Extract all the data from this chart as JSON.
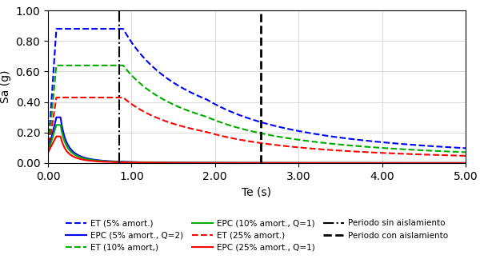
{
  "title": "",
  "xlabel": "Te (s)",
  "ylabel": "Sa (g)",
  "xlim": [
    0,
    5.0
  ],
  "ylim": [
    0,
    1.0
  ],
  "xticks": [
    0.0,
    1.0,
    2.0,
    3.0,
    4.0,
    5.0
  ],
  "yticks": [
    0.0,
    0.2,
    0.4,
    0.6,
    0.8,
    1.0
  ],
  "periodo_sin_aislamiento": 0.85,
  "periodo_con_aislamiento": 2.55,
  "colors": {
    "blue": "#0000FF",
    "green": "#00AA00",
    "red": "#FF0000",
    "black": "#000000"
  },
  "spectra": {
    "ET5": {
      "Ta": 0.1,
      "Tb": 0.9,
      "Tc": 1.9,
      "Sa_max": 0.88,
      "Sa0": 0.07,
      "decay": 1
    },
    "EPC5": {
      "Ta": 0.1,
      "Tb": 0.15,
      "Tc": 0.9,
      "Sa_max": 0.3,
      "Sa0": 0.07,
      "decay": 2
    },
    "ET10": {
      "Ta": 0.1,
      "Tb": 0.9,
      "Tc": 1.9,
      "Sa_max": 0.64,
      "Sa0": 0.07,
      "decay": 1
    },
    "EPC10": {
      "Ta": 0.1,
      "Tb": 0.15,
      "Tc": 0.9,
      "Sa_max": 0.25,
      "Sa0": 0.07,
      "decay": 2
    },
    "ET25": {
      "Ta": 0.1,
      "Tb": 0.9,
      "Tc": 1.9,
      "Sa_max": 0.43,
      "Sa0": 0.07,
      "decay": 1
    },
    "EPC25": {
      "Ta": 0.1,
      "Tb": 0.15,
      "Tc": 0.9,
      "Sa_max": 0.175,
      "Sa0": 0.07,
      "decay": 2
    }
  },
  "legend_items": [
    {
      "label": "ET (5% amort.)",
      "color": "#0000FF",
      "linestyle": "dashed",
      "lw": 1.5
    },
    {
      "label": "EPC (5% amort., Q=2)",
      "color": "#0000FF",
      "linestyle": "solid",
      "lw": 1.5
    },
    {
      "label": "ET (10% amort,)",
      "color": "#00AA00",
      "linestyle": "dashed",
      "lw": 1.5
    },
    {
      "label": "EPC (10% amort., Q=1)",
      "color": "#00AA00",
      "linestyle": "solid",
      "lw": 1.5
    },
    {
      "label": "ET (25% amort.)",
      "color": "#FF0000",
      "linestyle": "dashed",
      "lw": 1.5
    },
    {
      "label": "EPC (25% amort., Q=1)",
      "color": "#FF0000",
      "linestyle": "solid",
      "lw": 1.5
    },
    {
      "label": "Periodo sin aislamiento",
      "color": "#000000",
      "linestyle": "dashdot",
      "lw": 1.5
    },
    {
      "label": "Periodo con aislamiento",
      "color": "#000000",
      "linestyle": "dashed",
      "lw": 2.0
    }
  ]
}
